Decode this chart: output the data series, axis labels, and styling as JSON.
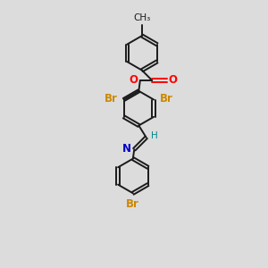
{
  "bg_color": "#dcdcdc",
  "bond_color": "#1a1a1a",
  "bond_width": 1.4,
  "dbo": 0.055,
  "font_size": 8.5,
  "atom_colors": {
    "O": "#ff0000",
    "N": "#0000cc",
    "Br": "#cc8800",
    "H": "#008888",
    "C": "#1a1a1a"
  },
  "ring_r": 0.65
}
